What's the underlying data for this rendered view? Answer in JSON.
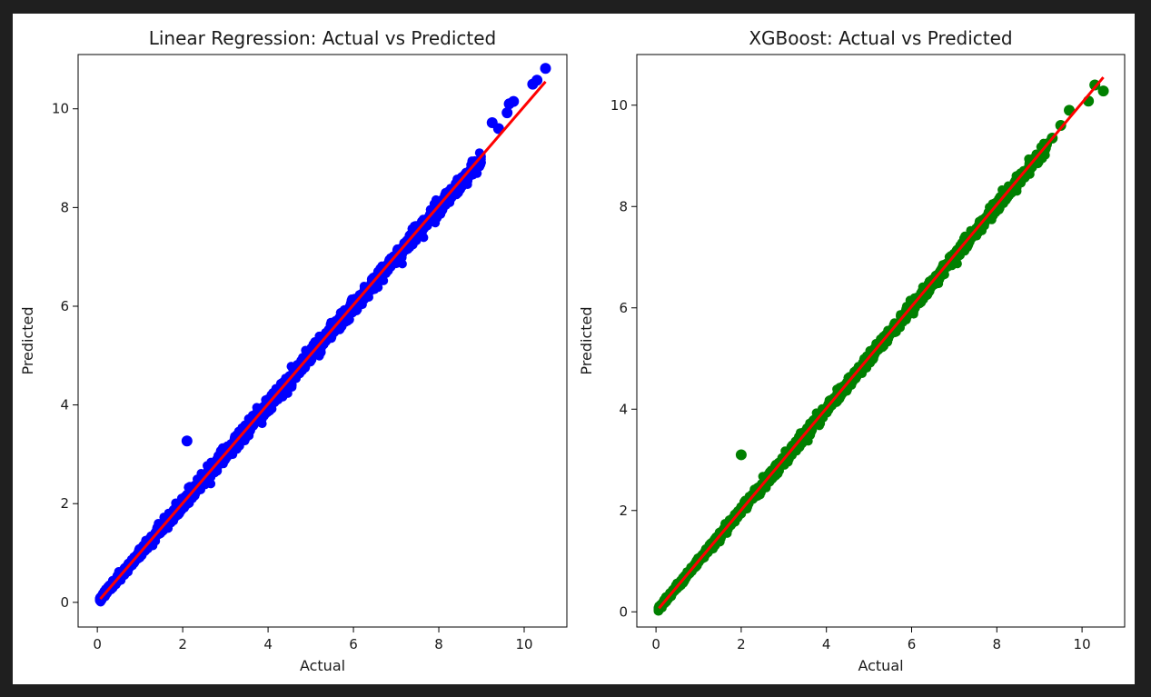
{
  "chart_data": [
    {
      "type": "scatter",
      "title": "Linear Regression: Actual vs Predicted",
      "xlabel": "Actual",
      "ylabel": "Predicted",
      "xlim": [
        -0.45,
        11.0
      ],
      "ylim": [
        -0.5,
        11.1
      ],
      "xticks": [
        "0",
        "2",
        "4",
        "6",
        "8",
        "10"
      ],
      "yticks": [
        "0",
        "2",
        "4",
        "6",
        "8",
        "10"
      ],
      "grid": false,
      "colors": {
        "points": "#0000ff",
        "line": "#ff0000"
      },
      "reference_line": {
        "x": [
          0.07,
          10.5
        ],
        "y": [
          0.07,
          10.55
        ]
      },
      "points": {
        "x_range": [
          0.05,
          9.0
        ],
        "spread": 0.15
      },
      "outliers": [
        {
          "x": 2.1,
          "y": 3.27
        },
        {
          "x": 9.25,
          "y": 9.72
        },
        {
          "x": 9.4,
          "y": 9.6
        },
        {
          "x": 9.6,
          "y": 9.92
        },
        {
          "x": 9.65,
          "y": 10.1
        },
        {
          "x": 9.75,
          "y": 10.15
        },
        {
          "x": 10.2,
          "y": 10.5
        },
        {
          "x": 10.3,
          "y": 10.58
        },
        {
          "x": 10.5,
          "y": 10.82
        }
      ]
    },
    {
      "type": "scatter",
      "title": "XGBoost: Actual vs Predicted",
      "xlabel": "Actual",
      "ylabel": "Predicted",
      "xlim": [
        -0.45,
        11.0
      ],
      "ylim": [
        -0.3,
        11.0
      ],
      "xticks": [
        "0",
        "2",
        "4",
        "6",
        "8",
        "10"
      ],
      "yticks": [
        "0",
        "2",
        "4",
        "6",
        "8",
        "10"
      ],
      "grid": false,
      "colors": {
        "points": "#008000",
        "line": "#ff0000"
      },
      "reference_line": {
        "x": [
          0.07,
          10.5
        ],
        "y": [
          0.07,
          10.55
        ]
      },
      "points": {
        "x_range": [
          0.05,
          9.2
        ],
        "spread": 0.11
      },
      "outliers": [
        {
          "x": 2.0,
          "y": 3.1
        },
        {
          "x": 9.3,
          "y": 9.35
        },
        {
          "x": 9.5,
          "y": 9.6
        },
        {
          "x": 9.7,
          "y": 9.9
        },
        {
          "x": 10.15,
          "y": 10.08
        },
        {
          "x": 10.3,
          "y": 10.4
        },
        {
          "x": 10.5,
          "y": 10.28
        }
      ]
    }
  ]
}
